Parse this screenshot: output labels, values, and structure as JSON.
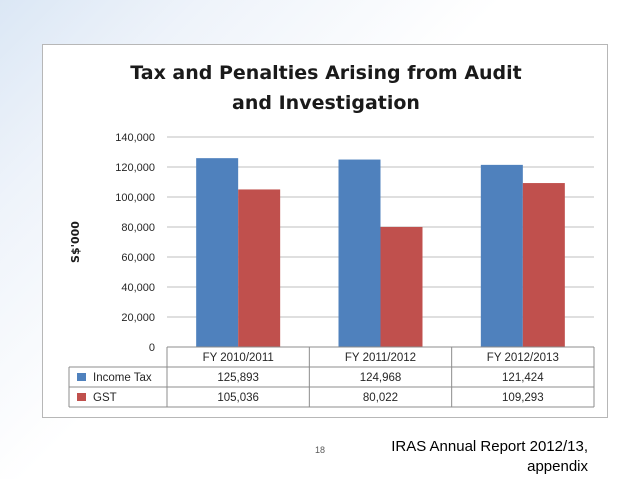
{
  "chart_data": {
    "type": "bar",
    "title": "Tax and Penalties Arising from  Audit and Investigation",
    "title_lines": [
      "Tax and Penalties Arising from  Audit",
      "and Investigation"
    ],
    "ylabel": "S$'000",
    "xlabel": "",
    "ylim": [
      0,
      140000
    ],
    "yticks": [
      0,
      20000,
      40000,
      60000,
      80000,
      100000,
      120000,
      140000
    ],
    "ytick_labels": [
      "0",
      "20,000",
      "40,000",
      "60,000",
      "80,000",
      "100,000",
      "120,000",
      "140,000"
    ],
    "grid": true,
    "legend": "data-table",
    "categories": [
      "FY 2010/2011",
      "FY 2011/2012",
      "FY 2012/2013"
    ],
    "series": [
      {
        "name": "Income Tax",
        "color": "#4f81bd",
        "values": [
          125893,
          124968,
          121424
        ],
        "labels": [
          "125,893",
          "124,968",
          "121,424"
        ]
      },
      {
        "name": "GST",
        "color": "#c0504d",
        "values": [
          105036,
          80022,
          109293
        ],
        "labels": [
          "105,036",
          "80,022",
          "109,293"
        ]
      }
    ]
  },
  "footer": {
    "page_number": "18",
    "source_lines": [
      "IRAS Annual Report 2012/13,",
      "appendix"
    ]
  }
}
